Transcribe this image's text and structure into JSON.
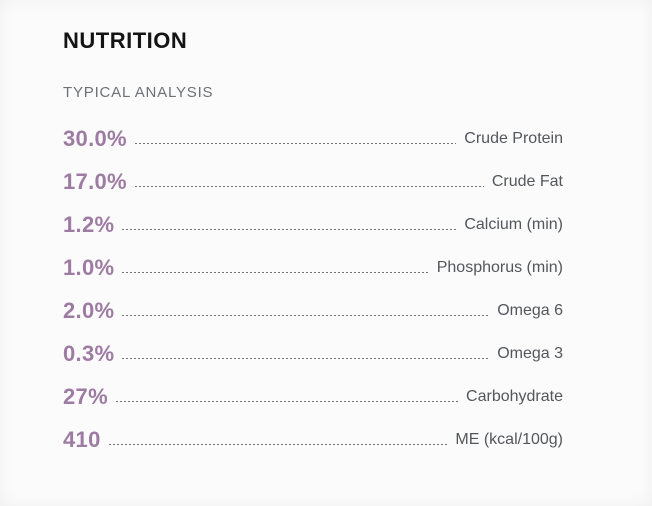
{
  "header": {
    "title": "NUTRITION",
    "subtitle": "TYPICAL ANALYSIS"
  },
  "colors": {
    "background": "#fbfbfb",
    "title_text": "#141414",
    "subtitle_text": "#6e7176",
    "value_accent": "#9d7ba2",
    "label_text": "#53565b",
    "leader_dashes": "#737373"
  },
  "rows": [
    {
      "value": "30.0%",
      "label": "Crude Protein"
    },
    {
      "value": "17.0%",
      "label": "Crude Fat"
    },
    {
      "value": "1.2%",
      "label": "Calcium (min)"
    },
    {
      "value": "1.0%",
      "label": "Phosphorus (min)"
    },
    {
      "value": "2.0%",
      "label": "Omega 6"
    },
    {
      "value": "0.3%",
      "label": "Omega 3"
    },
    {
      "value": "27%",
      "label": "Carbohydrate"
    },
    {
      "value": "410",
      "label": "ME (kcal/100g)"
    }
  ]
}
